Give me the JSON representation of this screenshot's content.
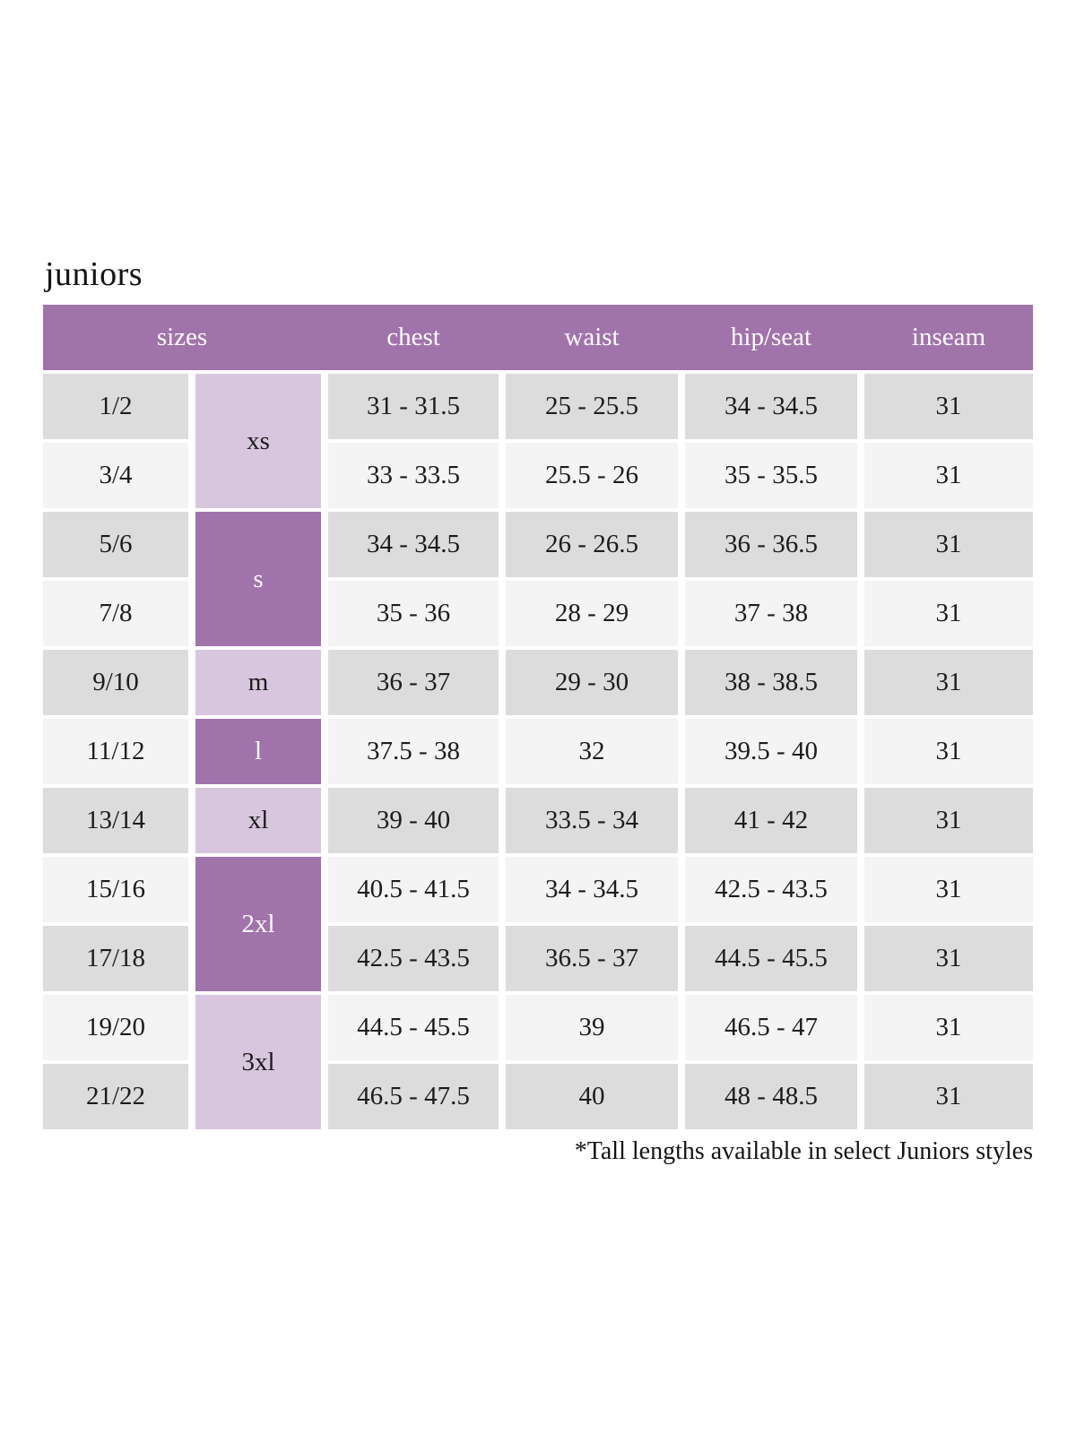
{
  "page": {
    "title": "juniors",
    "footnote": "*Tall lengths available in select Juniors styles"
  },
  "colors": {
    "purple": "#a173ab",
    "purple_light": "#d7c6de",
    "row_dark": "#dcdcdc",
    "row_light": "#f4f4f4",
    "text": "#1b1b1b",
    "header_text": "#ffffff"
  },
  "table": {
    "headers": [
      "sizes",
      "chest",
      "waist",
      "hip/seat",
      "inseam"
    ],
    "size_groups": [
      {
        "label": "xs",
        "rows_spanned": 2,
        "shade": "light"
      },
      {
        "label": "s",
        "rows_spanned": 2,
        "shade": "dark"
      },
      {
        "label": "m",
        "rows_spanned": 1,
        "shade": "light"
      },
      {
        "label": "l",
        "rows_spanned": 1,
        "shade": "dark"
      },
      {
        "label": "xl",
        "rows_spanned": 1,
        "shade": "light"
      },
      {
        "label": "2xl",
        "rows_spanned": 2,
        "shade": "dark"
      },
      {
        "label": "3xl",
        "rows_spanned": 2,
        "shade": "light"
      }
    ],
    "rows": [
      {
        "size": "1/2",
        "chest": "31 - 31.5",
        "waist": "25 - 25.5",
        "hip_seat": "34 - 34.5",
        "inseam": "31"
      },
      {
        "size": "3/4",
        "chest": "33 - 33.5",
        "waist": "25.5 - 26",
        "hip_seat": "35 - 35.5",
        "inseam": "31"
      },
      {
        "size": "5/6",
        "chest": "34 - 34.5",
        "waist": "26 - 26.5",
        "hip_seat": "36 - 36.5",
        "inseam": "31"
      },
      {
        "size": "7/8",
        "chest": "35 - 36",
        "waist": "28 - 29",
        "hip_seat": "37 - 38",
        "inseam": "31"
      },
      {
        "size": "9/10",
        "chest": "36 - 37",
        "waist": "29 - 30",
        "hip_seat": "38 - 38.5",
        "inseam": "31"
      },
      {
        "size": "11/12",
        "chest": "37.5 - 38",
        "waist": "32",
        "hip_seat": "39.5 - 40",
        "inseam": "31"
      },
      {
        "size": "13/14",
        "chest": "39 - 40",
        "waist": "33.5 - 34",
        "hip_seat": "41 - 42",
        "inseam": "31"
      },
      {
        "size": "15/16",
        "chest": "40.5 - 41.5",
        "waist": "34 - 34.5",
        "hip_seat": "42.5 - 43.5",
        "inseam": "31"
      },
      {
        "size": "17/18",
        "chest": "42.5 - 43.5",
        "waist": "36.5 - 37",
        "hip_seat": "44.5 - 45.5",
        "inseam": "31"
      },
      {
        "size": "19/20",
        "chest": "44.5 - 45.5",
        "waist": "39",
        "hip_seat": "46.5 - 47",
        "inseam": "31"
      },
      {
        "size": "21/22",
        "chest": "46.5 - 47.5",
        "waist": "40",
        "hip_seat": "48 - 48.5",
        "inseam": "31"
      }
    ]
  }
}
